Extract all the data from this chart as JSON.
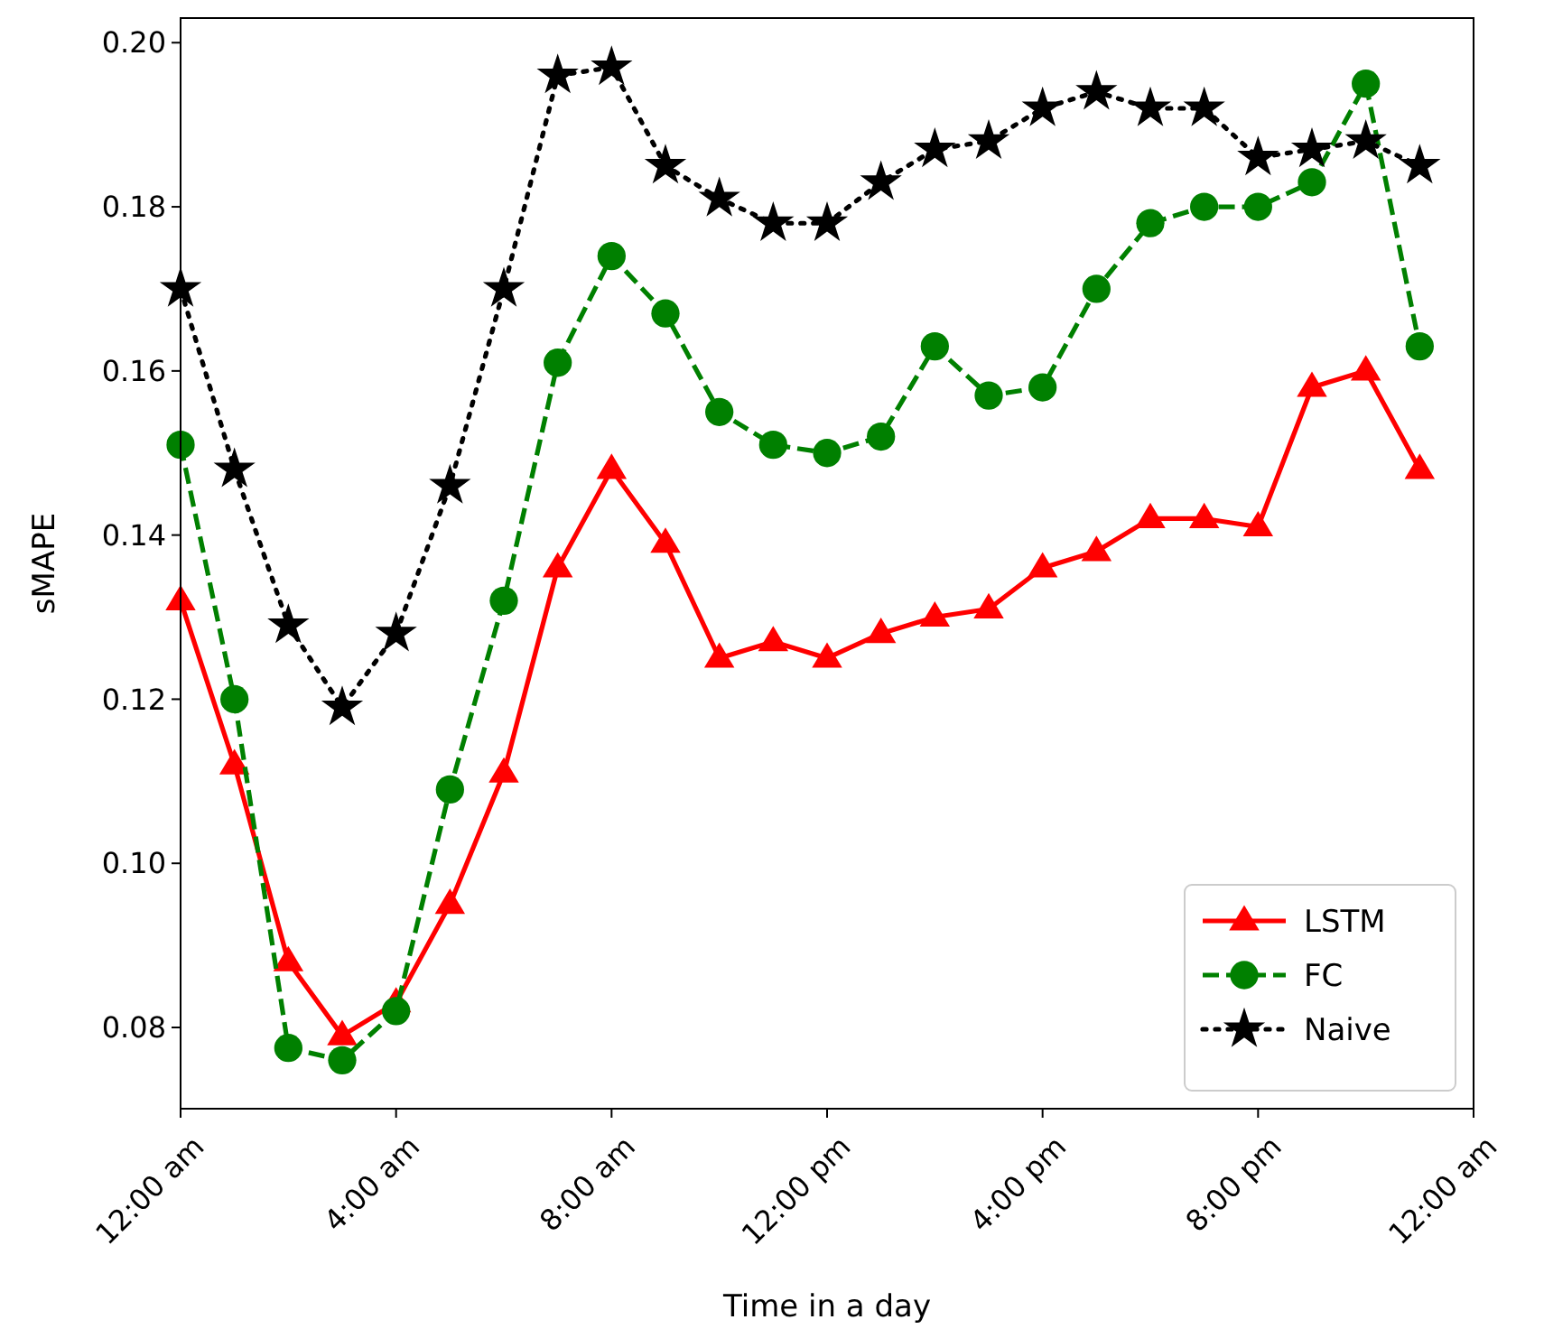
{
  "chart_data": {
    "type": "line",
    "xlabel": "Time in a day",
    "ylabel": "sMAPE",
    "x": [
      0,
      1,
      2,
      3,
      4,
      5,
      6,
      7,
      8,
      9,
      10,
      11,
      12,
      13,
      14,
      15,
      16,
      17,
      18,
      19,
      20,
      21,
      22,
      23
    ],
    "xlim": [
      0,
      24
    ],
    "xticks": [
      {
        "value": 0,
        "label": "12:00 am"
      },
      {
        "value": 4,
        "label": "4:00 am"
      },
      {
        "value": 8,
        "label": "8:00 am"
      },
      {
        "value": 12,
        "label": "12:00 pm"
      },
      {
        "value": 16,
        "label": "4:00 pm"
      },
      {
        "value": 20,
        "label": "8:00 pm"
      },
      {
        "value": 24,
        "label": "12:00 am"
      }
    ],
    "ylim": [
      0.0701,
      0.203
    ],
    "yticks": [
      {
        "value": 0.08,
        "label": "0.08"
      },
      {
        "value": 0.1,
        "label": "0.10"
      },
      {
        "value": 0.12,
        "label": "0.12"
      },
      {
        "value": 0.14,
        "label": "0.14"
      },
      {
        "value": 0.16,
        "label": "0.16"
      },
      {
        "value": 0.18,
        "label": "0.18"
      },
      {
        "value": 0.2,
        "label": "0.20"
      }
    ],
    "grid": false,
    "legend": "bottom right",
    "series": [
      {
        "name": "LSTM",
        "color": "#ff0000",
        "marker": "triangle",
        "line_style": "solid",
        "values": [
          0.132,
          0.112,
          0.088,
          0.079,
          0.083,
          0.095,
          0.111,
          0.136,
          0.148,
          0.139,
          0.125,
          0.127,
          0.125,
          0.128,
          0.13,
          0.131,
          0.136,
          0.138,
          0.142,
          0.142,
          0.141,
          0.158,
          0.16,
          0.148
        ]
      },
      {
        "name": "FC",
        "color": "#008000",
        "marker": "circle",
        "line_style": "dashed",
        "values": [
          0.151,
          0.12,
          0.0775,
          0.076,
          0.082,
          0.109,
          0.132,
          0.161,
          0.174,
          0.167,
          0.155,
          0.151,
          0.15,
          0.152,
          0.163,
          0.157,
          0.158,
          0.17,
          0.178,
          0.18,
          0.18,
          0.183,
          0.195,
          0.163
        ]
      },
      {
        "name": "Naive",
        "color": "#000000",
        "marker": "star",
        "line_style": "dotted",
        "values": [
          0.17,
          0.148,
          0.129,
          0.119,
          0.128,
          0.146,
          0.17,
          0.196,
          0.197,
          0.185,
          0.181,
          0.178,
          0.178,
          0.183,
          0.187,
          0.188,
          0.192,
          0.194,
          0.192,
          0.192,
          0.186,
          0.187,
          0.188,
          0.185
        ]
      }
    ]
  }
}
